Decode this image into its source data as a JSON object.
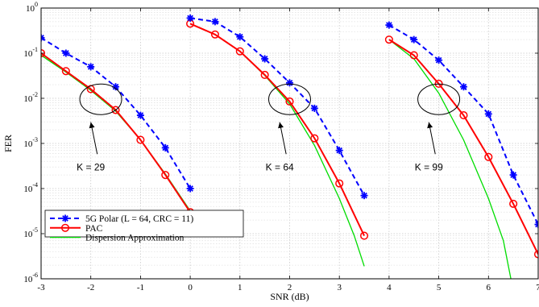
{
  "chart_data": {
    "type": "line",
    "xlabel": "SNR (dB)",
    "ylabel": "FER",
    "xlim": [
      -3,
      7
    ],
    "ylim": [
      1e-06,
      1
    ],
    "yscale": "log",
    "grid": true,
    "legend_position": "bottom-left",
    "x_ticks": [
      "-3",
      "-2",
      "-1",
      "0",
      "1",
      "2",
      "3",
      "4",
      "5",
      "6",
      "7"
    ],
    "y_ticks": [
      {
        "base": "10",
        "exp": "-6",
        "value": 1e-06
      },
      {
        "base": "10",
        "exp": "-5",
        "value": 1e-05
      },
      {
        "base": "10",
        "exp": "-4",
        "value": 0.0001
      },
      {
        "base": "10",
        "exp": "-3",
        "value": 0.001
      },
      {
        "base": "10",
        "exp": "-2",
        "value": 0.01
      },
      {
        "base": "10",
        "exp": "-1",
        "value": 0.1
      },
      {
        "base": "10",
        "exp": "0",
        "value": 1
      }
    ],
    "series": [
      {
        "name": "5G Polar (L = 64, CRC = 11)",
        "color": "#0000ff",
        "style": "dashed",
        "marker": "asterisk",
        "segments": [
          {
            "x": [
              -3,
              -2.5,
              -2,
              -1.5,
              -1,
              -0.5,
              0
            ],
            "y": [
              0.22,
              0.1,
              0.05,
              0.018,
              0.0042,
              0.0008,
              0.0001
            ]
          },
          {
            "x": [
              0,
              0.5,
              1,
              1.5,
              2,
              2.5,
              3,
              3.5
            ],
            "y": [
              0.6,
              0.5,
              0.23,
              0.075,
              0.022,
              0.006,
              0.0007,
              7e-05
            ]
          },
          {
            "x": [
              4,
              4.5,
              5,
              5.5,
              6,
              6.5,
              7
            ],
            "y": [
              0.42,
              0.2,
              0.07,
              0.018,
              0.0045,
              0.0002,
              1.6e-05
            ]
          }
        ]
      },
      {
        "name": "PAC",
        "color": "#ff0000",
        "style": "solid",
        "marker": "circle",
        "segments": [
          {
            "x": [
              -3,
              -2.5,
              -2,
              -1.5,
              -1,
              -0.5,
              0
            ],
            "y": [
              0.1,
              0.04,
              0.016,
              0.0055,
              0.0012,
              0.0002,
              3e-05
            ]
          },
          {
            "x": [
              0,
              0.5,
              1,
              1.5,
              2,
              2.5,
              3,
              3.5
            ],
            "y": [
              0.45,
              0.26,
              0.11,
              0.033,
              0.0085,
              0.0013,
              0.00013,
              9e-06
            ]
          },
          {
            "x": [
              4,
              4.5,
              5,
              5.5,
              6,
              6.5,
              7
            ],
            "y": [
              0.2,
              0.09,
              0.021,
              0.0042,
              0.0005,
              4.6e-05,
              3.5e-06
            ]
          }
        ]
      },
      {
        "name": "Dispersion Approximation",
        "color": "#00dd00",
        "style": "solid",
        "marker": "none",
        "segments": [
          {
            "x": [
              -3,
              -2.5,
              -2,
              -1.5,
              -1,
              -0.5,
              0
            ],
            "y": [
              0.09,
              0.038,
              0.015,
              0.0052,
              0.0012,
              0.00021,
              3.2e-05
            ]
          },
          {
            "x": [
              0,
              0.5,
              1,
              1.5,
              2,
              2.5,
              3,
              3.3,
              3.5
            ],
            "y": [
              0.45,
              0.26,
              0.11,
              0.032,
              0.0075,
              0.0009,
              6e-05,
              9e-06,
              1.9e-06
            ]
          },
          {
            "x": [
              4,
              4.5,
              5,
              5.5,
              6,
              6.3,
              6.45
            ],
            "y": [
              0.2,
              0.075,
              0.013,
              0.0012,
              6e-05,
              7e-06,
              1e-06
            ]
          }
        ]
      }
    ],
    "annotations": [
      {
        "text": "K = 29",
        "ellipse_center": [
          -1.8,
          0.0095
        ],
        "label_at": [
          -2.0,
          0.0003
        ],
        "arrow_to": [
          -2.0,
          0.0032
        ]
      },
      {
        "text": "K = 64",
        "ellipse_center": [
          2.0,
          0.0095
        ],
        "label_at": [
          1.8,
          0.0003
        ],
        "arrow_to": [
          1.8,
          0.0032
        ]
      },
      {
        "text": "K = 99",
        "ellipse_center": [
          5.0,
          0.0095
        ],
        "label_at": [
          4.8,
          0.0003
        ],
        "arrow_to": [
          4.8,
          0.0032
        ]
      }
    ]
  }
}
